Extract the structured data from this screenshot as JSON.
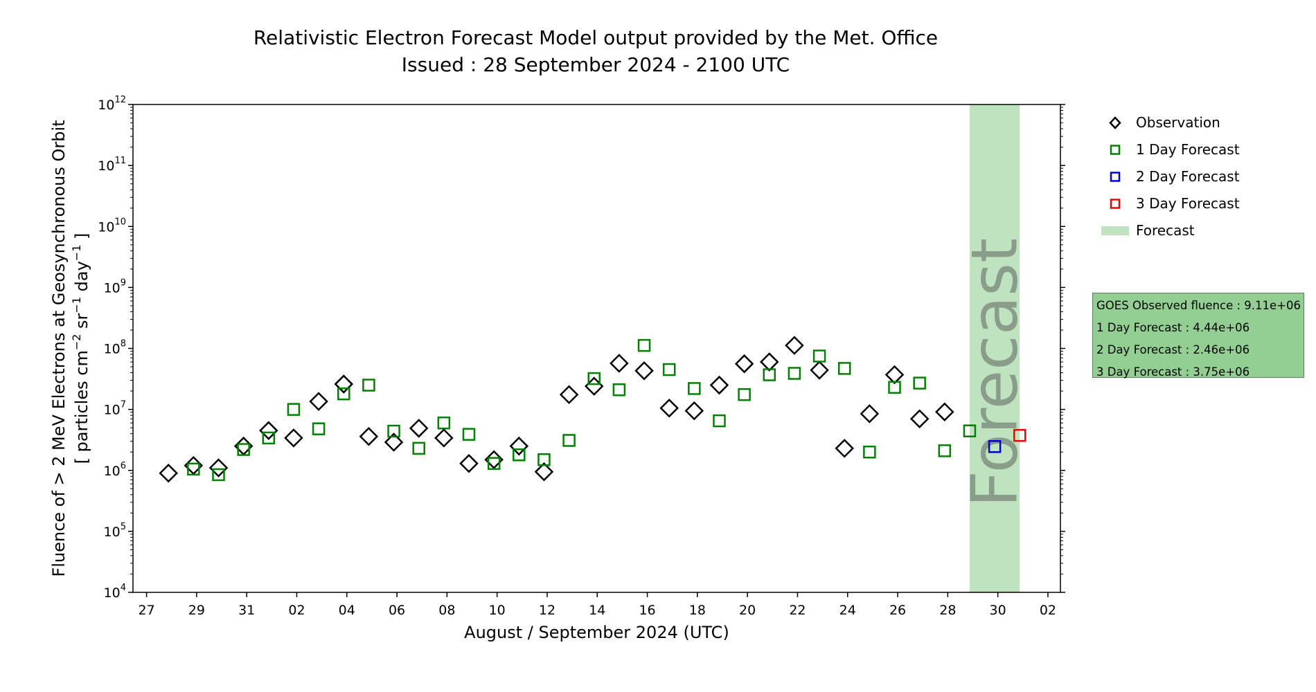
{
  "title": "Relativistic Electron Forecast Model output provided by the Met. Office",
  "subtitle": "Issued : 28 September 2024 - 2100 UTC",
  "colors": {
    "observation": "#000000",
    "forecast_1day": "#008000",
    "forecast_2day": "#0000cc",
    "forecast_3day": "#ee0000",
    "forecast_band": "#bfe3bf",
    "forecast_text": "#8a9c8a",
    "infobox_bg": "#93cf93"
  },
  "legend": {
    "placement": "right, outside plot, top",
    "items": [
      {
        "label": "Observation",
        "marker": "diamond",
        "color": "#000000"
      },
      {
        "label": "1 Day Forecast",
        "marker": "square",
        "color": "#008000"
      },
      {
        "label": "2 Day Forecast",
        "marker": "square",
        "color": "#0000cc"
      },
      {
        "label": "3 Day Forecast",
        "marker": "square",
        "color": "#ee0000"
      },
      {
        "label": "Forecast",
        "marker": "band",
        "color": "#bfe3bf"
      }
    ]
  },
  "infobox": {
    "lines": [
      "GOES Observed fluence : 9.11e+06",
      "1 Day Forecast : 4.44e+06",
      "2 Day Forecast : 2.46e+06",
      "3 Day Forecast : 3.75e+06"
    ]
  },
  "chart_data": {
    "type": "scatter",
    "title": "Relativistic Electron Forecast Model output provided by the Met. Office",
    "subtitle": "Issued : 28 September 2024 - 2100 UTC",
    "xlabel": "August / September 2024 (UTC)",
    "ylabel_line1": "Fluence of > 2 MeV Electrons at Geosynchronous Orbit",
    "ylabel_line2_parts": [
      "[ particles cm",
      "−2",
      " sr",
      "−1",
      " day",
      "−1",
      " ]"
    ],
    "yscale": "log",
    "ylim": [
      10000,
      1000000000000
    ],
    "y_ticks": [
      {
        "base": "10",
        "exp": "4",
        "value": 10000
      },
      {
        "base": "10",
        "exp": "5",
        "value": 100000
      },
      {
        "base": "10",
        "exp": "6",
        "value": 1000000
      },
      {
        "base": "10",
        "exp": "7",
        "value": 10000000
      },
      {
        "base": "10",
        "exp": "8",
        "value": 100000000
      },
      {
        "base": "10",
        "exp": "9",
        "value": 1000000000
      },
      {
        "base": "10",
        "exp": "10",
        "value": 10000000000
      },
      {
        "base": "10",
        "exp": "11",
        "value": 100000000000
      },
      {
        "base": "10",
        "exp": "12",
        "value": 1000000000000
      }
    ],
    "xlim": [
      "2024-08-26T11:00",
      "2024-10-02T12:00"
    ],
    "x_ticks": [
      {
        "label": "27",
        "date": "2024-08-27"
      },
      {
        "label": "29",
        "date": "2024-08-29"
      },
      {
        "label": "31",
        "date": "2024-08-31"
      },
      {
        "label": "02",
        "date": "2024-09-02"
      },
      {
        "label": "04",
        "date": "2024-09-04"
      },
      {
        "label": "06",
        "date": "2024-09-06"
      },
      {
        "label": "08",
        "date": "2024-09-08"
      },
      {
        "label": "10",
        "date": "2024-09-10"
      },
      {
        "label": "12",
        "date": "2024-09-12"
      },
      {
        "label": "14",
        "date": "2024-09-14"
      },
      {
        "label": "16",
        "date": "2024-09-16"
      },
      {
        "label": "18",
        "date": "2024-09-18"
      },
      {
        "label": "20",
        "date": "2024-09-20"
      },
      {
        "label": "22",
        "date": "2024-09-22"
      },
      {
        "label": "24",
        "date": "2024-09-24"
      },
      {
        "label": "26",
        "date": "2024-09-26"
      },
      {
        "label": "28",
        "date": "2024-09-28"
      },
      {
        "label": "30",
        "date": "2024-09-30"
      },
      {
        "label": "02",
        "date": "2024-10-02"
      }
    ],
    "grid": false,
    "forecast_band": {
      "start": "2024-09-28T21:00",
      "end": "2024-09-30T21:00",
      "label": "Forecast"
    },
    "series": [
      {
        "name": "Observation",
        "marker": "diamond",
        "color": "#000000",
        "points": [
          [
            "2024-08-27T21:00",
            900000
          ],
          [
            "2024-08-28T21:00",
            1200000
          ],
          [
            "2024-08-29T21:00",
            1100000
          ],
          [
            "2024-08-30T21:00",
            2500000
          ],
          [
            "2024-08-31T21:00",
            4500000
          ],
          [
            "2024-09-01T21:00",
            3400000
          ],
          [
            "2024-09-02T21:00",
            13500000
          ],
          [
            "2024-09-03T21:00",
            26000000
          ],
          [
            "2024-09-04T21:00",
            3600000
          ],
          [
            "2024-09-05T21:00",
            2900000
          ],
          [
            "2024-09-06T21:00",
            4900000
          ],
          [
            "2024-09-07T21:00",
            3400000
          ],
          [
            "2024-09-08T21:00",
            1300000
          ],
          [
            "2024-09-09T21:00",
            1500000
          ],
          [
            "2024-09-10T21:00",
            2500000
          ],
          [
            "2024-09-11T21:00",
            950000
          ],
          [
            "2024-09-12T21:00",
            17500000
          ],
          [
            "2024-09-13T21:00",
            24000000
          ],
          [
            "2024-09-14T21:00",
            57000000
          ],
          [
            "2024-09-15T21:00",
            43000000
          ],
          [
            "2024-09-16T21:00",
            10500000
          ],
          [
            "2024-09-17T21:00",
            9500000
          ],
          [
            "2024-09-18T21:00",
            25000000
          ],
          [
            "2024-09-19T21:00",
            56000000
          ],
          [
            "2024-09-20T21:00",
            60000000
          ],
          [
            "2024-09-21T21:00",
            112000000
          ],
          [
            "2024-09-22T21:00",
            44000000
          ],
          [
            "2024-09-23T21:00",
            2300000
          ],
          [
            "2024-09-24T21:00",
            8500000
          ],
          [
            "2024-09-25T21:00",
            37000000
          ],
          [
            "2024-09-26T21:00",
            7000000
          ],
          [
            "2024-09-27T21:00",
            9100000
          ]
        ]
      },
      {
        "name": "1 Day Forecast",
        "marker": "square",
        "color": "#008000",
        "points": [
          [
            "2024-08-28T21:00",
            1050000
          ],
          [
            "2024-08-29T21:00",
            850000
          ],
          [
            "2024-08-30T21:00",
            2200000
          ],
          [
            "2024-08-31T21:00",
            3400000
          ],
          [
            "2024-09-01T21:00",
            10000000
          ],
          [
            "2024-09-02T21:00",
            4800000
          ],
          [
            "2024-09-03T21:00",
            18000000
          ],
          [
            "2024-09-04T21:00",
            25000000
          ],
          [
            "2024-09-05T21:00",
            4400000
          ],
          [
            "2024-09-06T21:00",
            2300000
          ],
          [
            "2024-09-07T21:00",
            6000000
          ],
          [
            "2024-09-08T21:00",
            3900000
          ],
          [
            "2024-09-09T21:00",
            1300000
          ],
          [
            "2024-09-10T21:00",
            1800000
          ],
          [
            "2024-09-11T21:00",
            1500000
          ],
          [
            "2024-09-12T21:00",
            3100000
          ],
          [
            "2024-09-13T21:00",
            32000000
          ],
          [
            "2024-09-14T21:00",
            21000000
          ],
          [
            "2024-09-15T21:00",
            112000000
          ],
          [
            "2024-09-16T21:00",
            45000000
          ],
          [
            "2024-09-17T21:00",
            22000000
          ],
          [
            "2024-09-18T21:00",
            6500000
          ],
          [
            "2024-09-19T21:00",
            17500000
          ],
          [
            "2024-09-20T21:00",
            37000000
          ],
          [
            "2024-09-21T21:00",
            39000000
          ],
          [
            "2024-09-22T21:00",
            75000000
          ],
          [
            "2024-09-23T21:00",
            47000000
          ],
          [
            "2024-09-24T21:00",
            2000000
          ],
          [
            "2024-09-25T21:00",
            23000000
          ],
          [
            "2024-09-26T21:00",
            27000000
          ],
          [
            "2024-09-27T21:00",
            2100000
          ],
          [
            "2024-09-28T21:00",
            4440000
          ]
        ]
      },
      {
        "name": "2 Day Forecast",
        "marker": "square",
        "color": "#0000cc",
        "points": [
          [
            "2024-09-29T21:00",
            2460000
          ]
        ]
      },
      {
        "name": "3 Day Forecast",
        "marker": "square",
        "color": "#ee0000",
        "points": [
          [
            "2024-09-30T21:00",
            3750000
          ]
        ]
      }
    ]
  }
}
